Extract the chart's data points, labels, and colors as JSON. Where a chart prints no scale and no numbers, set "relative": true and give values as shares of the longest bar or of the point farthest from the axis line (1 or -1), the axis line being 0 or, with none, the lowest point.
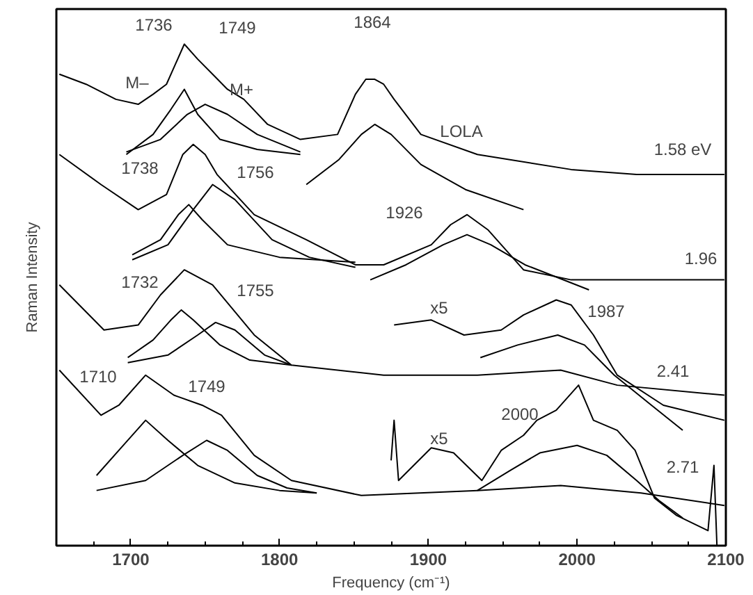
{
  "chart_data": {
    "type": "line",
    "relative": true,
    "xlabel": "Frequency (cm⁻¹)",
    "ylabel": "Raman Intensity",
    "xlim": [
      1650,
      2100
    ],
    "xticks": [
      {
        "value": 1675,
        "label": null
      },
      1700,
      {
        "value": 1725,
        "label": null
      },
      1800,
      {
        "value": 1775,
        "label": null
      },
      {
        "value": 1750,
        "label": null
      },
      {
        "value": 1825,
        "label": null
      },
      {
        "value": 1850,
        "label": null
      },
      {
        "value": 1875,
        "label": null
      },
      1900,
      {
        "value": 1925,
        "label": null
      },
      {
        "value": 1950,
        "label": null
      },
      {
        "value": 1975,
        "label": null
      },
      2000,
      {
        "value": 2025,
        "label": null
      },
      {
        "value": 2050,
        "label": null
      },
      {
        "value": 2075,
        "label": null
      },
      2100
    ],
    "tick_labels": "x",
    "grid": false,
    "marker": "none",
    "line_style": "solid",
    "series": [
      {
        "color": "#000000",
        "x": [
          1652,
          1670,
          1690,
          1705,
          1715,
          1724,
          1730,
          1736,
          1745,
          1755,
          1765,
          1776,
          1792,
          1814,
          1839,
          1851,
          1858,
          1864,
          1870,
          1877,
          1895,
          1933,
          1996,
          2040,
          2099
        ],
        "values": [
          0.94,
          0.92,
          0.89,
          0.88,
          0.9,
          0.92,
          0.96,
          1.0,
          0.97,
          0.94,
          0.91,
          0.89,
          0.84,
          0.81,
          0.82,
          0.9,
          0.93,
          0.93,
          0.92,
          0.89,
          0.82,
          0.78,
          0.75,
          0.74,
          0.74
        ]
      },
      {
        "color": "#000000",
        "x": [
          1697,
          1715,
          1727,
          1736,
          1745,
          1760,
          1785,
          1814
        ],
        "values": [
          0.78,
          0.82,
          0.87,
          0.91,
          0.86,
          0.81,
          0.79,
          0.78
        ]
      },
      {
        "color": "#000000",
        "x": [
          1697,
          1720,
          1738,
          1750,
          1765,
          1785,
          1814
        ],
        "values": [
          0.785,
          0.81,
          0.86,
          0.88,
          0.86,
          0.82,
          0.785
        ]
      },
      {
        "color": "#000000",
        "x": [
          1818,
          1840,
          1855,
          1864,
          1875,
          1895,
          1925,
          1964
        ],
        "values": [
          0.72,
          0.77,
          0.82,
          0.84,
          0.82,
          0.76,
          0.71,
          0.67
        ]
      },
      {
        "color": "#000000",
        "x": [
          1652,
          1680,
          1705,
          1724,
          1735,
          1742,
          1750,
          1758,
          1783,
          1818,
          1851,
          1870,
          1902,
          1915,
          1926,
          1940,
          1964,
          1996,
          2099
        ],
        "values": [
          0.78,
          0.72,
          0.67,
          0.7,
          0.78,
          0.8,
          0.78,
          0.74,
          0.66,
          0.61,
          0.56,
          0.56,
          0.6,
          0.64,
          0.66,
          0.63,
          0.55,
          0.53,
          0.53
        ]
      },
      {
        "color": "#000000",
        "x": [
          1701,
          1720,
          1732,
          1739,
          1748,
          1765,
          1800,
          1851
        ],
        "values": [
          0.58,
          0.61,
          0.66,
          0.68,
          0.65,
          0.6,
          0.575,
          0.565
        ]
      },
      {
        "color": "#000000",
        "x": [
          1701,
          1725,
          1742,
          1755,
          1770,
          1795,
          1820,
          1851
        ],
        "values": [
          0.57,
          0.6,
          0.67,
          0.72,
          0.69,
          0.61,
          0.575,
          0.555
        ]
      },
      {
        "color": "#000000",
        "x": [
          1861,
          1885,
          1910,
          1926,
          1942,
          1965,
          2008
        ],
        "values": [
          0.53,
          0.56,
          0.6,
          0.62,
          0.6,
          0.56,
          0.51
        ]
      },
      {
        "color": "#000000",
        "x": [
          1652,
          1682,
          1705,
          1720,
          1736,
          1755,
          1783,
          1808,
          1870,
          1933,
          1989,
          2027,
          2099
        ],
        "values": [
          0.52,
          0.43,
          0.44,
          0.5,
          0.55,
          0.52,
          0.42,
          0.36,
          0.34,
          0.34,
          0.35,
          0.32,
          0.3
        ]
      },
      {
        "color": "#000000",
        "x": [
          1698,
          1715,
          1727,
          1734,
          1742,
          1760,
          1780,
          1808
        ],
        "values": [
          0.375,
          0.41,
          0.45,
          0.47,
          0.45,
          0.4,
          0.37,
          0.36
        ]
      },
      {
        "color": "#000000",
        "x": [
          1698,
          1725,
          1745,
          1757,
          1770,
          1790,
          1808
        ],
        "values": [
          0.365,
          0.38,
          0.42,
          0.445,
          0.43,
          0.38,
          0.36
        ]
      },
      {
        "color": "#000000",
        "x": [
          1877,
          1902,
          1924,
          1949,
          1964,
          1986,
          1996,
          2011,
          2027,
          2058,
          2099
        ],
        "values": [
          0.44,
          0.45,
          0.42,
          0.43,
          0.46,
          0.49,
          0.48,
          0.42,
          0.34,
          0.28,
          0.25
        ]
      },
      {
        "color": "#000000",
        "x": [
          1935,
          1960,
          1987,
          2005,
          2025,
          2050,
          2071
        ],
        "values": [
          0.375,
          0.4,
          0.42,
          0.4,
          0.34,
          0.28,
          0.23
        ]
      },
      {
        "color": "#000000",
        "x": [
          1652,
          1680,
          1692,
          1710,
          1729,
          1748,
          1761,
          1783,
          1808,
          1855,
          1933,
          1989,
          2043,
          2099
        ],
        "values": [
          0.35,
          0.26,
          0.28,
          0.34,
          0.3,
          0.28,
          0.26,
          0.18,
          0.13,
          0.1,
          0.11,
          0.12,
          0.105,
          0.08
        ]
      },
      {
        "color": "#000000",
        "x": [
          1677,
          1695,
          1710,
          1725,
          1745,
          1770,
          1800,
          1825
        ],
        "values": [
          0.14,
          0.2,
          0.25,
          0.21,
          0.16,
          0.125,
          0.11,
          0.105
        ]
      },
      {
        "color": "#000000",
        "x": [
          1677,
          1710,
          1735,
          1751,
          1765,
          1785,
          1805,
          1825
        ],
        "values": [
          0.11,
          0.13,
          0.18,
          0.21,
          0.19,
          0.14,
          0.115,
          0.105
        ]
      },
      {
        "color": "#000000",
        "x": [
          1875,
          1877,
          1880,
          1902,
          1917,
          1936,
          1949,
          1964,
          1973,
          1986,
          2001,
          2011,
          2027,
          2039,
          2052,
          2067,
          2088,
          2092,
          2094
        ],
        "values": [
          0.17,
          0.25,
          0.13,
          0.195,
          0.185,
          0.13,
          0.19,
          0.22,
          0.25,
          0.27,
          0.32,
          0.25,
          0.23,
          0.19,
          0.095,
          0.06,
          0.03,
          0.16,
          0.0
        ]
      },
      {
        "color": "#000000",
        "x": [
          1933,
          1955,
          1975,
          2000,
          2020,
          2040,
          2055,
          2071
        ],
        "values": [
          0.11,
          0.15,
          0.185,
          0.2,
          0.18,
          0.13,
          0.09,
          0.055
        ]
      }
    ],
    "annotations": [
      "1736",
      "1749",
      "1864",
      "M–",
      "M+",
      "LOLA",
      "1.58 eV",
      "1738",
      "1756",
      "1926",
      "1.96",
      "1732",
      "1755",
      "x5",
      "1987",
      "2.41",
      "1710",
      "1749",
      "2000",
      "x5",
      "2.71"
    ]
  }
}
